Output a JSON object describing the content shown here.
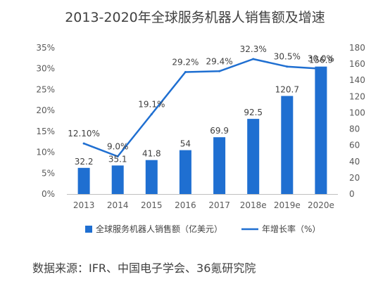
{
  "chart_data": {
    "type": "bar",
    "title": "2013-2020年全球服务机器人销售额及增速",
    "categories": [
      "2013",
      "2014",
      "2015",
      "2016",
      "2017",
      "2018e",
      "2019e",
      "2020e"
    ],
    "series": [
      {
        "name": "全球服务机器人销售额（亿美元）",
        "type": "bar",
        "axis": "right",
        "values": [
          32.2,
          35.1,
          41.8,
          54,
          69.9,
          92.5,
          120.7,
          156.9
        ],
        "labels": [
          "32.2",
          "35.1",
          "41.8",
          "54",
          "69.9",
          "92.5",
          "120.7",
          "156.9"
        ],
        "color": "#1f6fd1"
      },
      {
        "name": "年增长率（%）",
        "type": "line",
        "axis": "left",
        "values": [
          12.1,
          9.0,
          19.1,
          29.2,
          29.4,
          32.3,
          30.5,
          30.0
        ],
        "labels": [
          "12.10%",
          "9.0%",
          "19.1%",
          "29.2%",
          "29.4%",
          "32.3%",
          "30.5%",
          "30.0%"
        ],
        "color": "#1f6fd1"
      }
    ],
    "left_axis": {
      "min": 0,
      "max": 35,
      "ticks": [
        0,
        5,
        10,
        15,
        20,
        25,
        30,
        35
      ],
      "tick_labels": [
        "0%",
        "5%",
        "10%",
        "15%",
        "20%",
        "25%",
        "30%",
        "35%"
      ]
    },
    "right_axis": {
      "min": 0,
      "max": 180,
      "ticks": [
        0,
        20,
        40,
        60,
        80,
        100,
        120,
        140,
        160,
        180
      ],
      "tick_labels": [
        "0",
        "20",
        "40",
        "60",
        "80",
        "100",
        "120",
        "140",
        "160",
        "180"
      ]
    },
    "grid": false,
    "legend_position": "bottom"
  },
  "source": "数据来源：IFR、中国电子学会、36氪研究院"
}
